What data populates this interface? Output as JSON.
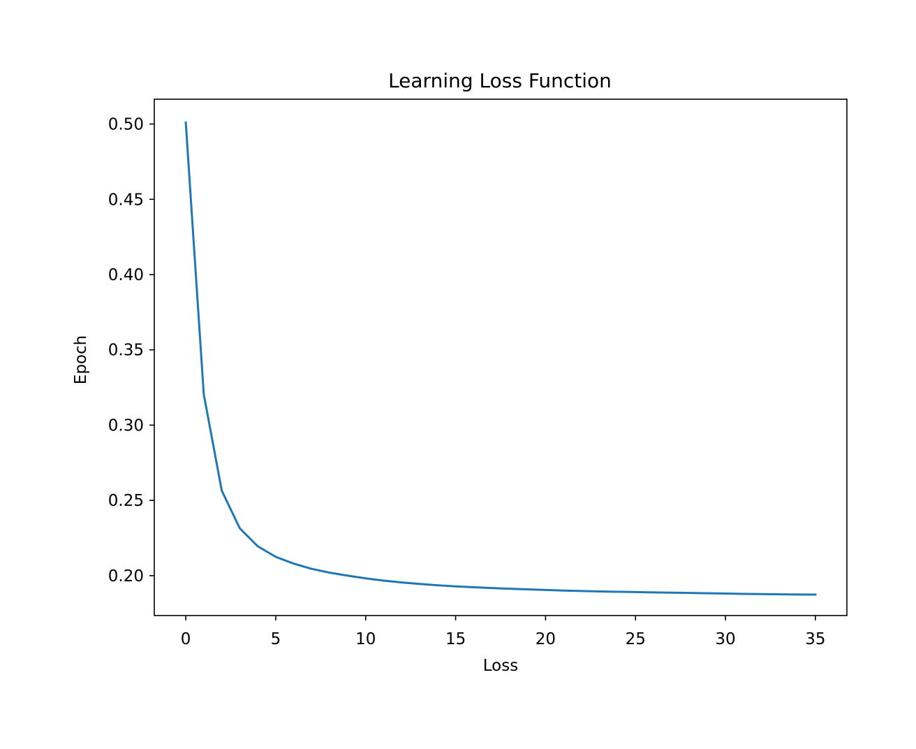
{
  "chart_data": {
    "type": "line",
    "title": "Learning Loss Function",
    "xlabel": "Loss",
    "ylabel": "Epoch",
    "xlim": [
      -1.75,
      36.75
    ],
    "ylim": [
      0.1735,
      0.5165
    ],
    "xticks": [
      0,
      5,
      10,
      15,
      20,
      25,
      30,
      35
    ],
    "xtick_labels": [
      "0",
      "5",
      "10",
      "15",
      "20",
      "25",
      "30",
      "35"
    ],
    "yticks": [
      0.2,
      0.25,
      0.3,
      0.35,
      0.4,
      0.45,
      0.5
    ],
    "ytick_labels": [
      "0.20",
      "0.25",
      "0.30",
      "0.35",
      "0.40",
      "0.45",
      "0.50"
    ],
    "grid": false,
    "legend": "none",
    "series": [
      {
        "color": "#1f77b4",
        "x": [
          0,
          1,
          2,
          3,
          4,
          5,
          6,
          7,
          8,
          9,
          10,
          11,
          12,
          13,
          14,
          15,
          16,
          17,
          18,
          19,
          20,
          21,
          22,
          23,
          24,
          25,
          26,
          27,
          28,
          29,
          30,
          31,
          32,
          33,
          34,
          35
        ],
        "y": [
          0.501,
          0.3205,
          0.2565,
          0.2315,
          0.2195,
          0.2125,
          0.208,
          0.2045,
          0.202,
          0.2,
          0.1982,
          0.1967,
          0.1955,
          0.1945,
          0.1936,
          0.1929,
          0.1923,
          0.1918,
          0.1913,
          0.1909,
          0.1905,
          0.1901,
          0.1898,
          0.1895,
          0.1893,
          0.1891,
          0.1889,
          0.1887,
          0.1885,
          0.1883,
          0.1881,
          0.1879,
          0.1878,
          0.1876,
          0.1875,
          0.1874
        ]
      }
    ]
  }
}
